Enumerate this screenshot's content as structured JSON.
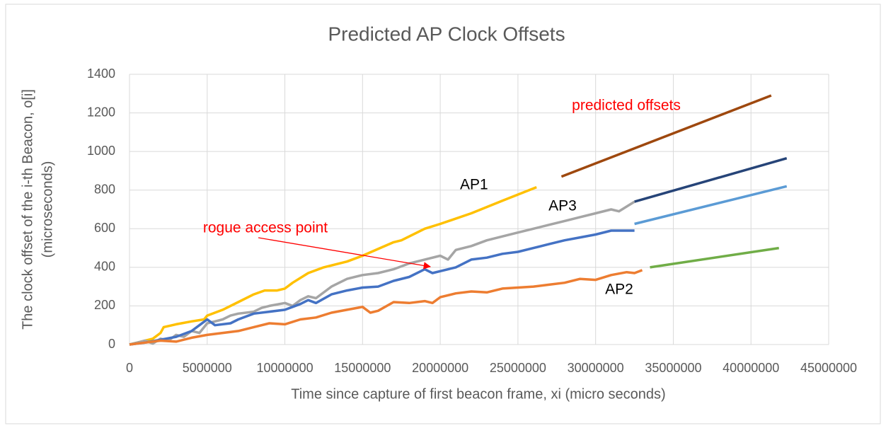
{
  "chart_data": {
    "type": "line",
    "title": "Predicted AP Clock Offsets",
    "xlabel": "Time since capture of first beacon frame, xi (micro seconds)",
    "ylabel": [
      "The clock offset of the i-th Beacon, o[i]",
      "(microseconds)"
    ],
    "xlim": [
      0,
      45000000
    ],
    "xticks": [
      0,
      5000000,
      10000000,
      15000000,
      20000000,
      25000000,
      30000000,
      35000000,
      40000000,
      45000000
    ],
    "ylim": [
      0,
      1400
    ],
    "yticks": [
      0,
      200,
      400,
      600,
      800,
      1000,
      1200,
      1400
    ],
    "grid": true,
    "annotations": [
      "AP1",
      "AP3",
      "AP2",
      "rogue access point",
      "predicted offsets"
    ],
    "annotation_colors": [
      "#000000",
      "#000000",
      "#000000",
      "#ff0000",
      "#ff0000"
    ],
    "series": [
      {
        "color": "#ffc000",
        "x": [
          0,
          1500000,
          2000000,
          2200000,
          3000000,
          4000000,
          4800000,
          5000000,
          6000000,
          7000000,
          8000000,
          8700000,
          9500000,
          10000000,
          10500000,
          11500000,
          12500000,
          14000000,
          15000000,
          16000000,
          17000000,
          17500000,
          19000000,
          20000000,
          22000000,
          24000000,
          26200000
        ],
        "values": [
          0,
          30,
          60,
          90,
          105,
          120,
          130,
          150,
          180,
          220,
          260,
          280,
          280,
          290,
          320,
          370,
          400,
          430,
          460,
          495,
          530,
          540,
          600,
          625,
          680,
          745,
          815
        ]
      },
      {
        "color": "#a5a5a5",
        "x": [
          0,
          500000,
          1000000,
          1500000,
          2000000,
          2500000,
          3000000,
          3500000,
          4000000,
          4500000,
          5000000,
          5500000,
          6000000,
          6500000,
          7000000,
          8000000,
          8500000,
          9000000,
          10000000,
          10500000,
          11000000,
          11500000,
          12000000,
          13000000,
          14000000,
          15000000,
          16000000,
          17000000,
          18000000,
          19000000,
          20000000,
          20500000,
          21000000,
          22000000,
          23000000,
          24000000,
          25000000,
          26000000,
          27000000,
          28000000,
          29000000,
          30000000,
          31000000,
          31500000,
          32500000
        ],
        "values": [
          0,
          10,
          20,
          5,
          30,
          20,
          50,
          40,
          70,
          60,
          110,
          120,
          130,
          150,
          160,
          170,
          190,
          200,
          215,
          200,
          230,
          250,
          240,
          300,
          340,
          360,
          370,
          390,
          420,
          440,
          460,
          440,
          490,
          510,
          540,
          560,
          580,
          600,
          620,
          640,
          660,
          680,
          700,
          690,
          740
        ]
      },
      {
        "color": "#4472c4",
        "x": [
          0,
          1000000,
          2000000,
          3000000,
          4000000,
          4500000,
          5000000,
          5500000,
          6500000,
          7000000,
          8000000,
          9000000,
          10000000,
          10500000,
          11000000,
          11500000,
          12000000,
          13000000,
          14000000,
          15000000,
          16000000,
          17000000,
          18000000,
          19000000,
          19500000,
          20000000,
          21000000,
          22000000,
          23000000,
          24000000,
          25000000,
          26000000,
          27000000,
          28000000,
          29000000,
          30000000,
          31000000,
          32500000
        ],
        "values": [
          0,
          10,
          25,
          40,
          70,
          100,
          130,
          100,
          110,
          130,
          160,
          170,
          180,
          195,
          210,
          230,
          215,
          260,
          280,
          295,
          300,
          330,
          350,
          390,
          370,
          380,
          400,
          440,
          450,
          470,
          480,
          500,
          520,
          540,
          555,
          570,
          590,
          590
        ]
      },
      {
        "color": "#ed7d31",
        "x": [
          0,
          1000000,
          2000000,
          3000000,
          4000000,
          5000000,
          6000000,
          7000000,
          8000000,
          9000000,
          10000000,
          11000000,
          12000000,
          13000000,
          14000000,
          15000000,
          15500000,
          16000000,
          17000000,
          18000000,
          19000000,
          19500000,
          20000000,
          21000000,
          22000000,
          23000000,
          24000000,
          25000000,
          26000000,
          27000000,
          28000000,
          29000000,
          30000000,
          31000000,
          32000000,
          32500000,
          33000000
        ],
        "values": [
          0,
          10,
          20,
          15,
          35,
          50,
          60,
          70,
          90,
          110,
          105,
          130,
          140,
          165,
          180,
          195,
          165,
          175,
          220,
          215,
          225,
          215,
          245,
          265,
          275,
          270,
          290,
          295,
          300,
          310,
          320,
          340,
          335,
          360,
          375,
          370,
          385
        ]
      },
      {
        "color": "#9e480e",
        "x": [
          27800000,
          41300000
        ],
        "values": [
          870,
          1290
        ]
      },
      {
        "color": "#264478",
        "x": [
          32500000,
          42300000
        ],
        "values": [
          740,
          965
        ]
      },
      {
        "color": "#5b9bd5",
        "x": [
          32500000,
          42300000
        ],
        "values": [
          625,
          820
        ]
      },
      {
        "color": "#70ad47",
        "x": [
          33500000,
          41800000
        ],
        "values": [
          400,
          500
        ]
      }
    ]
  }
}
